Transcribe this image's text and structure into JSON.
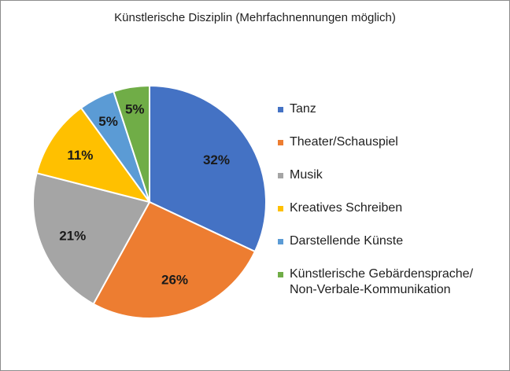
{
  "chart_data": {
    "type": "pie",
    "title": "Künstlerische  Disziplin (Mehrfachnennungen möglich)",
    "categories": [
      "Tanz",
      "Theater/Schauspiel",
      "Musik",
      "Kreatives Schreiben",
      "Darstellende Künste",
      "Künstlerische Gebärdensprache/\nNon-Verbale-Kommunikation"
    ],
    "values": [
      32,
      26,
      21,
      11,
      5,
      5
    ],
    "labels": [
      "32%",
      "26%",
      "21%",
      "11%",
      "5%",
      "5%"
    ],
    "colors": [
      "#4472c4",
      "#ed7d31",
      "#a5a5a5",
      "#ffc000",
      "#5b9bd5",
      "#70ad47"
    ],
    "legend_position": "right"
  }
}
